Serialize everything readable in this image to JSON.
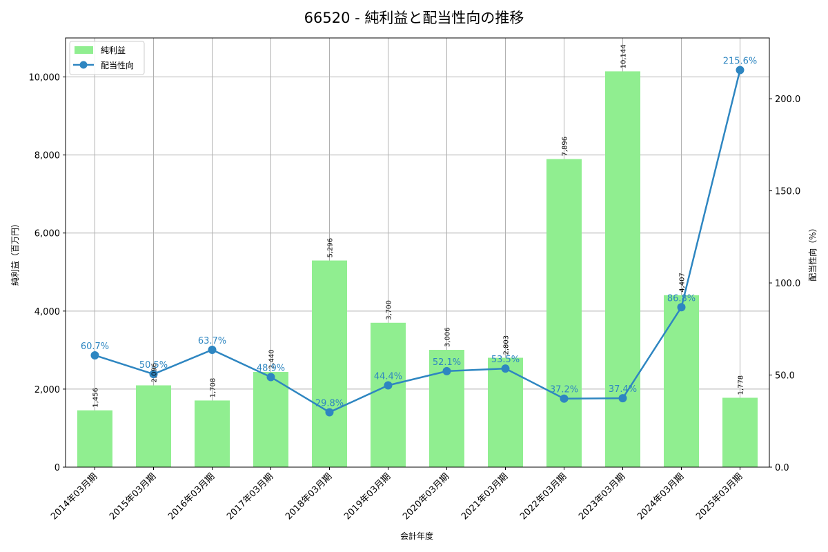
{
  "chart_data": {
    "type": "bar+line",
    "title": "66520 - 純利益と配当性向の推移",
    "xlabel": "会計年度",
    "ylabel_left": "純利益（百万円）",
    "ylabel_right": "配当性向（%）",
    "categories": [
      "2014年03月期",
      "2015年03月期",
      "2016年03月期",
      "2017年03月期",
      "2018年03月期",
      "2019年03月期",
      "2020年03月期",
      "2021年03月期",
      "2022年03月期",
      "2023年03月期",
      "2024年03月期",
      "2025年03月期"
    ],
    "series": [
      {
        "name": "純利益",
        "type": "bar",
        "axis": "left",
        "color": "#90ee90",
        "values": [
          1456,
          2096,
          1708,
          2440,
          5296,
          3700,
          3006,
          2803,
          7896,
          10144,
          4407,
          1778
        ],
        "labels": [
          "1,456",
          "2,096",
          "1,708",
          "2,440",
          "5,296",
          "3,700",
          "3,006",
          "2,803",
          "7,896",
          "10,144",
          "4,407",
          "1,778"
        ]
      },
      {
        "name": "配当性向",
        "type": "line",
        "axis": "right",
        "color": "#2e86c1",
        "values": [
          60.7,
          50.5,
          63.7,
          48.9,
          29.8,
          44.4,
          52.1,
          53.5,
          37.2,
          37.4,
          86.8,
          215.6
        ],
        "labels": [
          "60.7%",
          "50.5%",
          "63.7%",
          "48.9%",
          "29.8%",
          "44.4%",
          "52.1%",
          "53.5%",
          "37.2%",
          "37.4%",
          "86.8%",
          "215.6%"
        ]
      }
    ],
    "ylim_left": [
      0,
      11000
    ],
    "yticks_left": [
      0,
      2000,
      4000,
      6000,
      8000,
      10000
    ],
    "yticklabels_left": [
      "0",
      "2,000",
      "4,000",
      "6,000",
      "8,000",
      "10,000"
    ],
    "ylim_right": [
      0,
      233
    ],
    "yticks_right": [
      0,
      50,
      100,
      150,
      200
    ],
    "yticklabels_right": [
      "0.0",
      "50.0",
      "100.0",
      "150.0",
      "200.0"
    ],
    "grid": true,
    "legend_position": "upper left"
  }
}
